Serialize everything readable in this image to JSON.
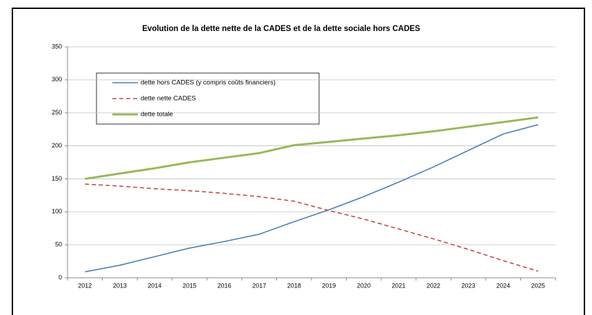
{
  "chart_data": {
    "type": "line",
    "title": "Evolution de la dette nette de la CADES et  de la dette sociale hors CADES",
    "categories": [
      "2012",
      "2013",
      "2014",
      "2015",
      "2016",
      "2017",
      "2018",
      "2019",
      "2020",
      "2021",
      "2022",
      "2023",
      "2024",
      "2025"
    ],
    "series": [
      {
        "name": "dette hors CADES (y compris coûts financiers)",
        "color": "#4a7ebb",
        "dash": false,
        "width": 1.6,
        "values": [
          9,
          19,
          32,
          45,
          55,
          66,
          85,
          103,
          123,
          145,
          168,
          193,
          218,
          232
        ]
      },
      {
        "name": "dette nette CADES",
        "color": "#be4b48",
        "dash": true,
        "width": 1.6,
        "values": [
          142,
          139,
          135,
          132,
          128,
          123,
          116,
          102,
          89,
          74,
          59,
          43,
          26,
          10
        ]
      },
      {
        "name": "dette totale",
        "color": "#98b954",
        "dash": false,
        "width": 3,
        "values": [
          150,
          158,
          166,
          175,
          182,
          189,
          201,
          206,
          211,
          216,
          222,
          229,
          236,
          243
        ]
      }
    ],
    "ylim": [
      0,
      350
    ],
    "yticks": [
      0,
      50,
      100,
      150,
      200,
      250,
      300,
      350
    ],
    "grid": true
  }
}
